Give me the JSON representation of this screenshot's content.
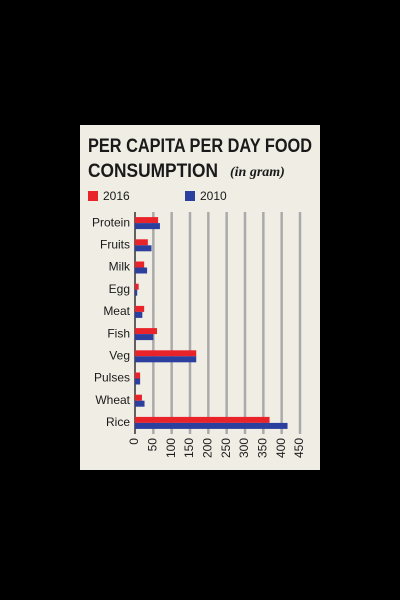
{
  "chart_data": {
    "type": "bar",
    "orientation": "horizontal",
    "title": [
      "PER CAPITA PER DAY FOOD",
      "CONSUMPTION"
    ],
    "subtitle": "(in gram)",
    "categories": [
      "Protein",
      "Fruits",
      "Milk",
      "Egg",
      "Meat",
      "Fish",
      "Veg",
      "Pulses",
      "Wheat",
      "Rice"
    ],
    "series": [
      {
        "name": "2016",
        "color": "#e8232a",
        "values": [
          63,
          35,
          25,
          10,
          25,
          60,
          167,
          14,
          19,
          367
        ]
      },
      {
        "name": "2010",
        "color": "#2b3f9e",
        "values": [
          68,
          45,
          33,
          6,
          20,
          50,
          167,
          14,
          26,
          416
        ]
      }
    ],
    "xlim": [
      0,
      450
    ],
    "xticks": [
      0,
      50,
      100,
      150,
      200,
      250,
      300,
      350,
      400,
      450
    ],
    "grid": true,
    "legend": "top"
  }
}
